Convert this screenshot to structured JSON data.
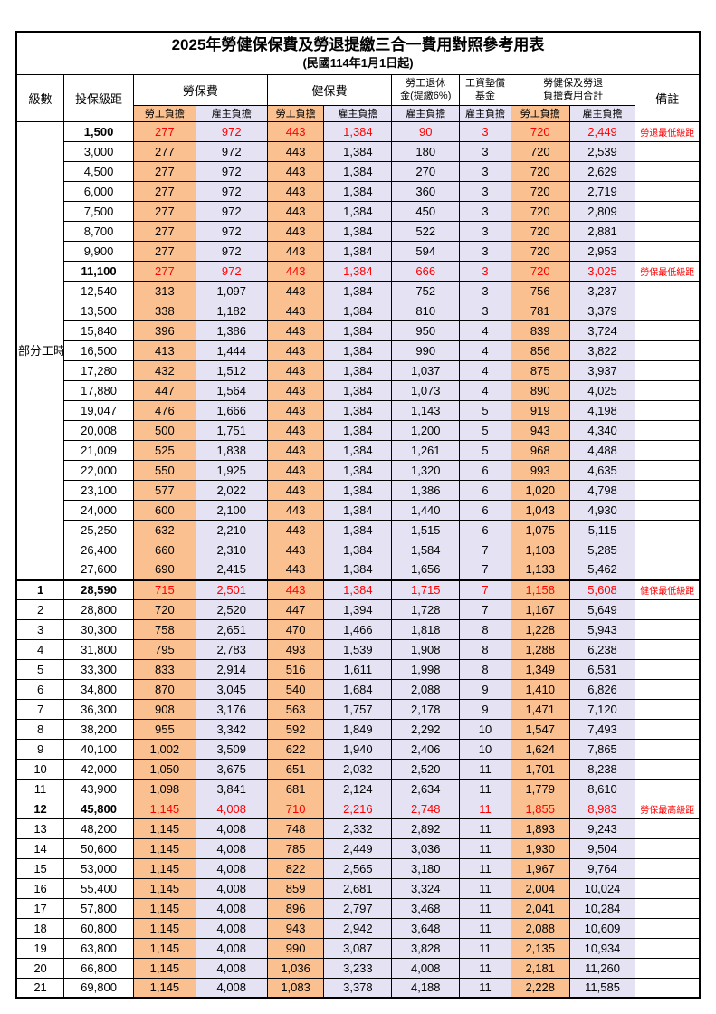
{
  "title": "2025年勞健保保費及勞退提繳三合一費用對照參考用表",
  "subtitle": "(民國114年1月1日起)",
  "colors": {
    "employee_bg": "#FAC090",
    "employer_bg": "#E4E2F3",
    "highlight_text": "#FF0000",
    "border": "#000000"
  },
  "headers": {
    "level": "級數",
    "bracket": "投保級距",
    "labor_ins": "勞保費",
    "health_ins": "健保費",
    "pension_line1": "勞工退休",
    "pension_line2": "金(提繳6%)",
    "wage_fund_line1": "工資墊償",
    "wage_fund_line2": "基金",
    "total_line1": "勞健保及勞退",
    "total_line2": "負擔費用合計",
    "note": "備註",
    "employee": "勞工負擔",
    "employer": "雇主負擔"
  },
  "part_time_label": "部分工時",
  "rows": [
    {
      "level": "",
      "bracket": "1,500",
      "li_emp": "277",
      "li_er": "972",
      "hi_emp": "443",
      "hi_er": "1,384",
      "pension": "90",
      "fund": "3",
      "tot_emp": "720",
      "tot_er": "2,449",
      "note": "勞退最低級距",
      "hl": true
    },
    {
      "level": "",
      "bracket": "3,000",
      "li_emp": "277",
      "li_er": "972",
      "hi_emp": "443",
      "hi_er": "1,384",
      "pension": "180",
      "fund": "3",
      "tot_emp": "720",
      "tot_er": "2,539",
      "note": "",
      "hl": false
    },
    {
      "level": "",
      "bracket": "4,500",
      "li_emp": "277",
      "li_er": "972",
      "hi_emp": "443",
      "hi_er": "1,384",
      "pension": "270",
      "fund": "3",
      "tot_emp": "720",
      "tot_er": "2,629",
      "note": "",
      "hl": false
    },
    {
      "level": "",
      "bracket": "6,000",
      "li_emp": "277",
      "li_er": "972",
      "hi_emp": "443",
      "hi_er": "1,384",
      "pension": "360",
      "fund": "3",
      "tot_emp": "720",
      "tot_er": "2,719",
      "note": "",
      "hl": false
    },
    {
      "level": "",
      "bracket": "7,500",
      "li_emp": "277",
      "li_er": "972",
      "hi_emp": "443",
      "hi_er": "1,384",
      "pension": "450",
      "fund": "3",
      "tot_emp": "720",
      "tot_er": "2,809",
      "note": "",
      "hl": false
    },
    {
      "level": "",
      "bracket": "8,700",
      "li_emp": "277",
      "li_er": "972",
      "hi_emp": "443",
      "hi_er": "1,384",
      "pension": "522",
      "fund": "3",
      "tot_emp": "720",
      "tot_er": "2,881",
      "note": "",
      "hl": false
    },
    {
      "level": "",
      "bracket": "9,900",
      "li_emp": "277",
      "li_er": "972",
      "hi_emp": "443",
      "hi_er": "1,384",
      "pension": "594",
      "fund": "3",
      "tot_emp": "720",
      "tot_er": "2,953",
      "note": "",
      "hl": false
    },
    {
      "level": "",
      "bracket": "11,100",
      "li_emp": "277",
      "li_er": "972",
      "hi_emp": "443",
      "hi_er": "1,384",
      "pension": "666",
      "fund": "3",
      "tot_emp": "720",
      "tot_er": "3,025",
      "note": "勞保最低級距",
      "hl": true
    },
    {
      "level": "",
      "bracket": "12,540",
      "li_emp": "313",
      "li_er": "1,097",
      "hi_emp": "443",
      "hi_er": "1,384",
      "pension": "752",
      "fund": "3",
      "tot_emp": "756",
      "tot_er": "3,237",
      "note": "",
      "hl": false
    },
    {
      "level": "",
      "bracket": "13,500",
      "li_emp": "338",
      "li_er": "1,182",
      "hi_emp": "443",
      "hi_er": "1,384",
      "pension": "810",
      "fund": "3",
      "tot_emp": "781",
      "tot_er": "3,379",
      "note": "",
      "hl": false
    },
    {
      "level": "",
      "bracket": "15,840",
      "li_emp": "396",
      "li_er": "1,386",
      "hi_emp": "443",
      "hi_er": "1,384",
      "pension": "950",
      "fund": "4",
      "tot_emp": "839",
      "tot_er": "3,724",
      "note": "",
      "hl": false
    },
    {
      "level": "",
      "bracket": "16,500",
      "li_emp": "413",
      "li_er": "1,444",
      "hi_emp": "443",
      "hi_er": "1,384",
      "pension": "990",
      "fund": "4",
      "tot_emp": "856",
      "tot_er": "3,822",
      "note": "",
      "hl": false
    },
    {
      "level": "",
      "bracket": "17,280",
      "li_emp": "432",
      "li_er": "1,512",
      "hi_emp": "443",
      "hi_er": "1,384",
      "pension": "1,037",
      "fund": "4",
      "tot_emp": "875",
      "tot_er": "3,937",
      "note": "",
      "hl": false
    },
    {
      "level": "",
      "bracket": "17,880",
      "li_emp": "447",
      "li_er": "1,564",
      "hi_emp": "443",
      "hi_er": "1,384",
      "pension": "1,073",
      "fund": "4",
      "tot_emp": "890",
      "tot_er": "4,025",
      "note": "",
      "hl": false
    },
    {
      "level": "",
      "bracket": "19,047",
      "li_emp": "476",
      "li_er": "1,666",
      "hi_emp": "443",
      "hi_er": "1,384",
      "pension": "1,143",
      "fund": "5",
      "tot_emp": "919",
      "tot_er": "4,198",
      "note": "",
      "hl": false
    },
    {
      "level": "",
      "bracket": "20,008",
      "li_emp": "500",
      "li_er": "1,751",
      "hi_emp": "443",
      "hi_er": "1,384",
      "pension": "1,200",
      "fund": "5",
      "tot_emp": "943",
      "tot_er": "4,340",
      "note": "",
      "hl": false
    },
    {
      "level": "",
      "bracket": "21,009",
      "li_emp": "525",
      "li_er": "1,838",
      "hi_emp": "443",
      "hi_er": "1,384",
      "pension": "1,261",
      "fund": "5",
      "tot_emp": "968",
      "tot_er": "4,488",
      "note": "",
      "hl": false
    },
    {
      "level": "",
      "bracket": "22,000",
      "li_emp": "550",
      "li_er": "1,925",
      "hi_emp": "443",
      "hi_er": "1,384",
      "pension": "1,320",
      "fund": "6",
      "tot_emp": "993",
      "tot_er": "4,635",
      "note": "",
      "hl": false
    },
    {
      "level": "",
      "bracket": "23,100",
      "li_emp": "577",
      "li_er": "2,022",
      "hi_emp": "443",
      "hi_er": "1,384",
      "pension": "1,386",
      "fund": "6",
      "tot_emp": "1,020",
      "tot_er": "4,798",
      "note": "",
      "hl": false
    },
    {
      "level": "",
      "bracket": "24,000",
      "li_emp": "600",
      "li_er": "2,100",
      "hi_emp": "443",
      "hi_er": "1,384",
      "pension": "1,440",
      "fund": "6",
      "tot_emp": "1,043",
      "tot_er": "4,930",
      "note": "",
      "hl": false
    },
    {
      "level": "",
      "bracket": "25,250",
      "li_emp": "632",
      "li_er": "2,210",
      "hi_emp": "443",
      "hi_er": "1,384",
      "pension": "1,515",
      "fund": "6",
      "tot_emp": "1,075",
      "tot_er": "5,115",
      "note": "",
      "hl": false
    },
    {
      "level": "",
      "bracket": "26,400",
      "li_emp": "660",
      "li_er": "2,310",
      "hi_emp": "443",
      "hi_er": "1,384",
      "pension": "1,584",
      "fund": "7",
      "tot_emp": "1,103",
      "tot_er": "5,285",
      "note": "",
      "hl": false
    },
    {
      "level": "",
      "bracket": "27,600",
      "li_emp": "690",
      "li_er": "2,415",
      "hi_emp": "443",
      "hi_er": "1,384",
      "pension": "1,656",
      "fund": "7",
      "tot_emp": "1,133",
      "tot_er": "5,462",
      "note": "",
      "hl": false
    },
    {
      "level": "1",
      "bracket": "28,590",
      "li_emp": "715",
      "li_er": "2,501",
      "hi_emp": "443",
      "hi_er": "1,384",
      "pension": "1,715",
      "fund": "7",
      "tot_emp": "1,158",
      "tot_er": "5,608",
      "note": "健保最低級距",
      "hl": true
    },
    {
      "level": "2",
      "bracket": "28,800",
      "li_emp": "720",
      "li_er": "2,520",
      "hi_emp": "447",
      "hi_er": "1,394",
      "pension": "1,728",
      "fund": "7",
      "tot_emp": "1,167",
      "tot_er": "5,649",
      "note": "",
      "hl": false
    },
    {
      "level": "3",
      "bracket": "30,300",
      "li_emp": "758",
      "li_er": "2,651",
      "hi_emp": "470",
      "hi_er": "1,466",
      "pension": "1,818",
      "fund": "8",
      "tot_emp": "1,228",
      "tot_er": "5,943",
      "note": "",
      "hl": false
    },
    {
      "level": "4",
      "bracket": "31,800",
      "li_emp": "795",
      "li_er": "2,783",
      "hi_emp": "493",
      "hi_er": "1,539",
      "pension": "1,908",
      "fund": "8",
      "tot_emp": "1,288",
      "tot_er": "6,238",
      "note": "",
      "hl": false
    },
    {
      "level": "5",
      "bracket": "33,300",
      "li_emp": "833",
      "li_er": "2,914",
      "hi_emp": "516",
      "hi_er": "1,611",
      "pension": "1,998",
      "fund": "8",
      "tot_emp": "1,349",
      "tot_er": "6,531",
      "note": "",
      "hl": false
    },
    {
      "level": "6",
      "bracket": "34,800",
      "li_emp": "870",
      "li_er": "3,045",
      "hi_emp": "540",
      "hi_er": "1,684",
      "pension": "2,088",
      "fund": "9",
      "tot_emp": "1,410",
      "tot_er": "6,826",
      "note": "",
      "hl": false
    },
    {
      "level": "7",
      "bracket": "36,300",
      "li_emp": "908",
      "li_er": "3,176",
      "hi_emp": "563",
      "hi_er": "1,757",
      "pension": "2,178",
      "fund": "9",
      "tot_emp": "1,471",
      "tot_er": "7,120",
      "note": "",
      "hl": false
    },
    {
      "level": "8",
      "bracket": "38,200",
      "li_emp": "955",
      "li_er": "3,342",
      "hi_emp": "592",
      "hi_er": "1,849",
      "pension": "2,292",
      "fund": "10",
      "tot_emp": "1,547",
      "tot_er": "7,493",
      "note": "",
      "hl": false
    },
    {
      "level": "9",
      "bracket": "40,100",
      "li_emp": "1,002",
      "li_er": "3,509",
      "hi_emp": "622",
      "hi_er": "1,940",
      "pension": "2,406",
      "fund": "10",
      "tot_emp": "1,624",
      "tot_er": "7,865",
      "note": "",
      "hl": false
    },
    {
      "level": "10",
      "bracket": "42,000",
      "li_emp": "1,050",
      "li_er": "3,675",
      "hi_emp": "651",
      "hi_er": "2,032",
      "pension": "2,520",
      "fund": "11",
      "tot_emp": "1,701",
      "tot_er": "8,238",
      "note": "",
      "hl": false
    },
    {
      "level": "11",
      "bracket": "43,900",
      "li_emp": "1,098",
      "li_er": "3,841",
      "hi_emp": "681",
      "hi_er": "2,124",
      "pension": "2,634",
      "fund": "11",
      "tot_emp": "1,779",
      "tot_er": "8,610",
      "note": "",
      "hl": false
    },
    {
      "level": "12",
      "bracket": "45,800",
      "li_emp": "1,145",
      "li_er": "4,008",
      "hi_emp": "710",
      "hi_er": "2,216",
      "pension": "2,748",
      "fund": "11",
      "tot_emp": "1,855",
      "tot_er": "8,983",
      "note": "勞保最高級距",
      "hl": true
    },
    {
      "level": "13",
      "bracket": "48,200",
      "li_emp": "1,145",
      "li_er": "4,008",
      "hi_emp": "748",
      "hi_er": "2,332",
      "pension": "2,892",
      "fund": "11",
      "tot_emp": "1,893",
      "tot_er": "9,243",
      "note": "",
      "hl": false
    },
    {
      "level": "14",
      "bracket": "50,600",
      "li_emp": "1,145",
      "li_er": "4,008",
      "hi_emp": "785",
      "hi_er": "2,449",
      "pension": "3,036",
      "fund": "11",
      "tot_emp": "1,930",
      "tot_er": "9,504",
      "note": "",
      "hl": false
    },
    {
      "level": "15",
      "bracket": "53,000",
      "li_emp": "1,145",
      "li_er": "4,008",
      "hi_emp": "822",
      "hi_er": "2,565",
      "pension": "3,180",
      "fund": "11",
      "tot_emp": "1,967",
      "tot_er": "9,764",
      "note": "",
      "hl": false
    },
    {
      "level": "16",
      "bracket": "55,400",
      "li_emp": "1,145",
      "li_er": "4,008",
      "hi_emp": "859",
      "hi_er": "2,681",
      "pension": "3,324",
      "fund": "11",
      "tot_emp": "2,004",
      "tot_er": "10,024",
      "note": "",
      "hl": false
    },
    {
      "level": "17",
      "bracket": "57,800",
      "li_emp": "1,145",
      "li_er": "4,008",
      "hi_emp": "896",
      "hi_er": "2,797",
      "pension": "3,468",
      "fund": "11",
      "tot_emp": "2,041",
      "tot_er": "10,284",
      "note": "",
      "hl": false
    },
    {
      "level": "18",
      "bracket": "60,800",
      "li_emp": "1,145",
      "li_er": "4,008",
      "hi_emp": "943",
      "hi_er": "2,942",
      "pension": "3,648",
      "fund": "11",
      "tot_emp": "2,088",
      "tot_er": "10,609",
      "note": "",
      "hl": false
    },
    {
      "level": "19",
      "bracket": "63,800",
      "li_emp": "1,145",
      "li_er": "4,008",
      "hi_emp": "990",
      "hi_er": "3,087",
      "pension": "3,828",
      "fund": "11",
      "tot_emp": "2,135",
      "tot_er": "10,934",
      "note": "",
      "hl": false
    },
    {
      "level": "20",
      "bracket": "66,800",
      "li_emp": "1,145",
      "li_er": "4,008",
      "hi_emp": "1,036",
      "hi_er": "3,233",
      "pension": "4,008",
      "fund": "11",
      "tot_emp": "2,181",
      "tot_er": "11,260",
      "note": "",
      "hl": false
    },
    {
      "level": "21",
      "bracket": "69,800",
      "li_emp": "1,145",
      "li_er": "4,008",
      "hi_emp": "1,083",
      "hi_er": "3,378",
      "pension": "4,188",
      "fund": "11",
      "tot_emp": "2,228",
      "tot_er": "11,585",
      "note": "",
      "hl": false
    }
  ]
}
